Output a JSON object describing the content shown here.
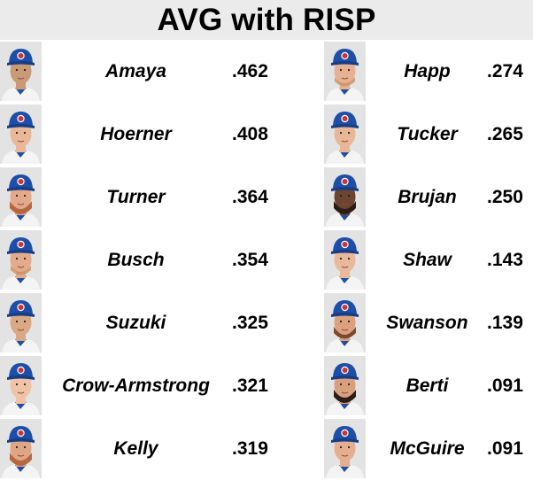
{
  "title": "AVG with RISP",
  "colors": {
    "title_bar": "#ebebeb",
    "cap_blue": "#1d4ea8",
    "logo_red": "#cc3433",
    "headshot_bg": "#e3e3e3"
  },
  "players_left": [
    {
      "name": "Amaya",
      "avg": ".462",
      "icon": "player-headshot-icon",
      "skin": "#c99a76",
      "hair": "none"
    },
    {
      "name": "Hoerner",
      "avg": ".408",
      "icon": "player-headshot-icon",
      "skin": "#e8b898",
      "hair": "light"
    },
    {
      "name": "Turner",
      "avg": ".364",
      "icon": "player-headshot-icon",
      "skin": "#e4a98a",
      "hair": "red-beard"
    },
    {
      "name": "Busch",
      "avg": ".354",
      "icon": "player-headshot-icon",
      "skin": "#e2ab8c",
      "hair": "light-beard"
    },
    {
      "name": "Suzuki",
      "avg": ".325",
      "icon": "player-headshot-icon",
      "skin": "#d9a884",
      "hair": "none"
    },
    {
      "name": "Crow-Armstrong",
      "avg": ".321",
      "icon": "player-headshot-icon",
      "skin": "#f0c2a6",
      "hair": "none"
    },
    {
      "name": "Kelly",
      "avg": ".319",
      "icon": "player-headshot-icon",
      "skin": "#e0a585",
      "hair": "red-beard"
    }
  ],
  "players_right": [
    {
      "name": "Happ",
      "avg": ".274",
      "icon": "player-headshot-icon",
      "skin": "#e6b094",
      "hair": "light-beard"
    },
    {
      "name": "Tucker",
      "avg": ".265",
      "icon": "player-headshot-icon",
      "skin": "#e8b798",
      "hair": "none"
    },
    {
      "name": "Brujan",
      "avg": ".250",
      "icon": "player-headshot-icon",
      "skin": "#6b4532",
      "hair": "dark-beard"
    },
    {
      "name": "Shaw",
      "avg": ".143",
      "icon": "player-headshot-icon",
      "skin": "#eab89a",
      "hair": "none"
    },
    {
      "name": "Swanson",
      "avg": ".139",
      "icon": "player-headshot-icon",
      "skin": "#dca27f",
      "hair": "brown-beard"
    },
    {
      "name": "Berti",
      "avg": ".091",
      "icon": "player-headshot-icon",
      "skin": "#d8a07e",
      "hair": "dark-beard"
    },
    {
      "name": "McGuire",
      "avg": ".091",
      "icon": "player-headshot-icon",
      "skin": "#e6ae90",
      "hair": "light"
    }
  ]
}
